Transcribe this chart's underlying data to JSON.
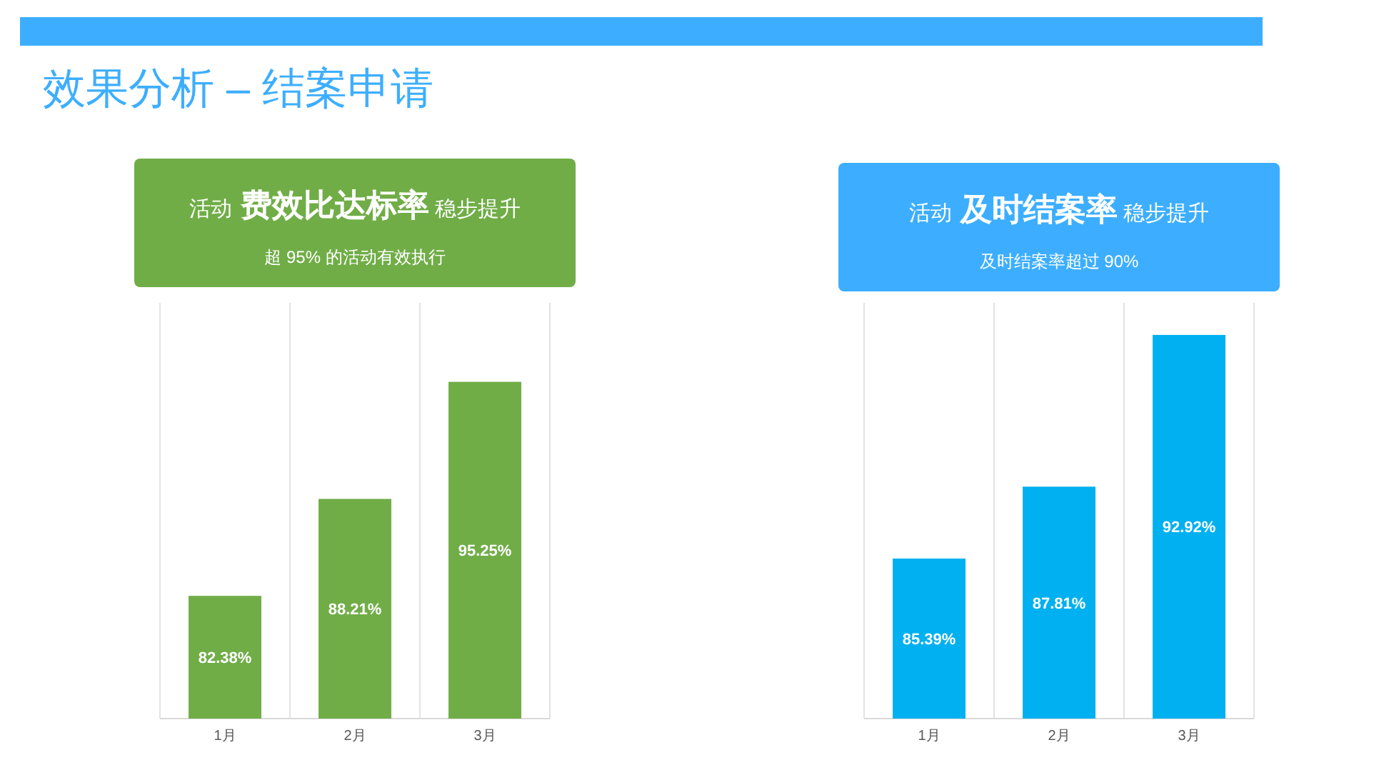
{
  "chart_data": [
    {
      "type": "bar",
      "title": "活动 费效比达标率 稳步提升",
      "subtitle": "超 95% 的活动有效执行",
      "annotations": [
        "效果分析 – 结案申请"
      ],
      "categories": [
        "1月",
        "2月",
        "3月"
      ],
      "values": [
        82.38,
        88.21,
        95.25
      ],
      "value_labels": [
        "82.38%",
        "88.21%",
        "95.25%"
      ],
      "color": "#70ad47",
      "ylim": [
        75,
        100
      ],
      "grid": "x",
      "tick_labels": "x"
    },
    {
      "type": "bar",
      "title": "活动 及时结案率 稳步提升",
      "subtitle": "及时结案率超过 90%",
      "categories": [
        "1月",
        "2月",
        "3月"
      ],
      "values": [
        85.39,
        87.81,
        92.92
      ],
      "value_labels": [
        "85.39%",
        "87.81%",
        "92.92%"
      ],
      "color": "#00b0f0",
      "ylim": [
        80,
        94
      ],
      "grid": "x",
      "tick_labels": "x"
    }
  ]
}
